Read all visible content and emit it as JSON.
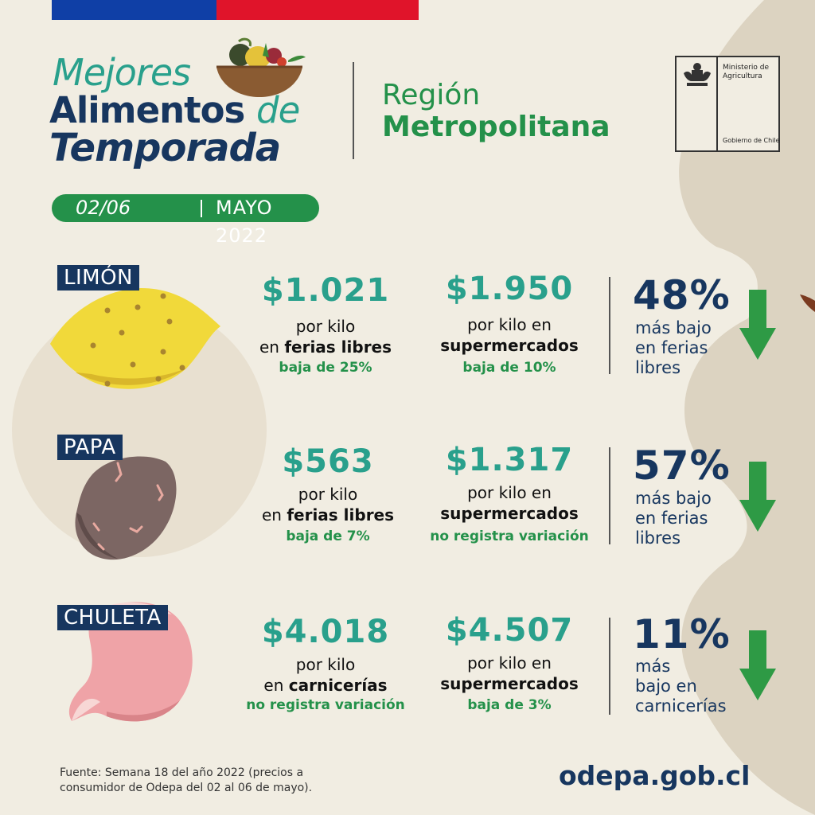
{
  "header": {
    "title_line1": "Mejores",
    "title_line2_main": "Alimentos",
    "title_line2_de": "de",
    "title_line3": "Temporada",
    "region_line1": "Región",
    "region_line2": "Metropolitana",
    "ministry_line1": "Ministerio de Agricultura",
    "ministry_line2": "Gobierno de Chile",
    "date_range": "02/06",
    "month_year": "MAYO 2022"
  },
  "items": [
    {
      "label": "LIMÓN",
      "price_a": "$1.021",
      "desc_a_line1": "por kilo",
      "desc_a_prefix": "en ",
      "desc_a_bold": "ferias libres",
      "change_a": "baja de 25%",
      "price_b": "$1.950",
      "desc_b_line1": "por kilo en",
      "desc_b_bold": "supermercados",
      "change_b": "baja de 10%",
      "pct": "48%",
      "pct_desc_1": "más bajo",
      "pct_desc_2": "en ferias",
      "pct_desc_3": "libres"
    },
    {
      "label": "PAPA",
      "price_a": "$563",
      "desc_a_line1": "por kilo",
      "desc_a_prefix": "en ",
      "desc_a_bold": "ferias libres",
      "change_a": "baja de 7%",
      "price_b": "$1.317",
      "desc_b_line1": "por kilo en",
      "desc_b_bold": "supermercados",
      "change_b": "no registra variación",
      "pct": "57%",
      "pct_desc_1": "más bajo",
      "pct_desc_2": "en ferias",
      "pct_desc_3": "libres"
    },
    {
      "label": "CHULETA",
      "price_a": "$4.018",
      "desc_a_line1": "por kilo",
      "desc_a_prefix": "en ",
      "desc_a_bold": "carnicerías",
      "change_a": "no registra variación",
      "price_b": "$4.507",
      "desc_b_line1": "por kilo en",
      "desc_b_bold": "supermercados",
      "change_b": "baja de 3%",
      "pct": "11%",
      "pct_desc_1": "más",
      "pct_desc_2": "bajo en",
      "pct_desc_3": "carnicerías"
    }
  ],
  "footer": {
    "source_line1": "Fuente: Semana 18 del año 2022 (precios a",
    "source_line2": "consumidor de Odepa del 02 al 06 de mayo).",
    "url": "odepa.gob.cl"
  },
  "colors": {
    "background": "#f1ede2",
    "navy": "#17365f",
    "teal": "#29a08c",
    "green": "#24914a",
    "flag_blue": "#0f3fa6",
    "flag_red": "#e0142a"
  },
  "icons": [
    "bowl-of-vegetables-icon",
    "chile-coat-of-arms-icon",
    "lemon-icon",
    "potato-icon",
    "pork-chop-icon",
    "down-arrow-icon"
  ]
}
